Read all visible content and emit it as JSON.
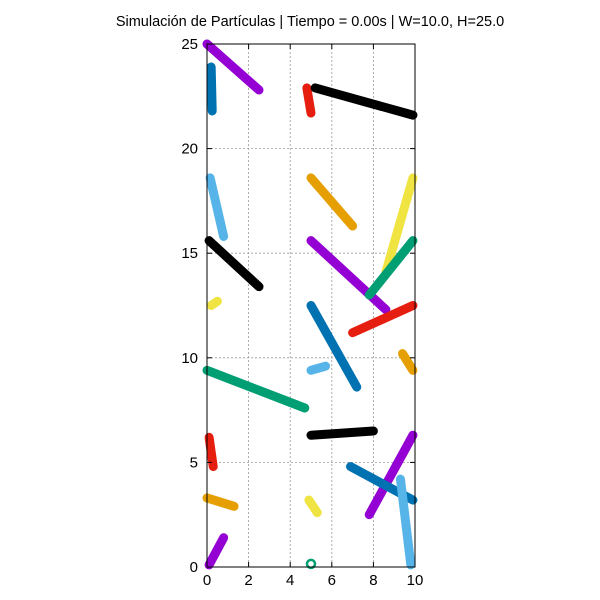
{
  "chart_data": {
    "type": "line",
    "title": "Simulación de Partículas | Tiempo = 0.00s | W=10.0, H=25.0",
    "xlabel": "",
    "ylabel": "",
    "xlim": [
      0,
      10
    ],
    "ylim": [
      0,
      25
    ],
    "xticks": [
      0,
      2,
      4,
      6,
      8,
      10
    ],
    "yticks": [
      0,
      5,
      10,
      15,
      20,
      25
    ],
    "grid": true,
    "legend": "none",
    "palette": {
      "purple": "#9400d3",
      "blue": "#0072b2",
      "lightblue": "#56b4e9",
      "black": "#000000",
      "orange": "#e69f00",
      "yellow": "#f0e442",
      "green": "#009e73",
      "red": "#e51e10"
    },
    "segments": [
      {
        "color": "purple",
        "x": [
          0.0,
          2.5
        ],
        "y": [
          25.0,
          22.8
        ]
      },
      {
        "color": "blue",
        "x": [
          0.2,
          0.25
        ],
        "y": [
          23.9,
          21.8
        ]
      },
      {
        "color": "red",
        "x": [
          4.8,
          5.0
        ],
        "y": [
          22.9,
          21.7
        ]
      },
      {
        "color": "black",
        "x": [
          5.2,
          9.9
        ],
        "y": [
          22.9,
          21.6
        ]
      },
      {
        "color": "lightblue",
        "x": [
          0.15,
          0.8
        ],
        "y": [
          18.6,
          15.8
        ]
      },
      {
        "color": "orange",
        "x": [
          5.0,
          7.0
        ],
        "y": [
          18.6,
          16.3
        ]
      },
      {
        "color": "yellow",
        "x": [
          9.9,
          8.6
        ],
        "y": [
          18.6,
          14.1
        ]
      },
      {
        "color": "black",
        "x": [
          0.1,
          2.5
        ],
        "y": [
          15.6,
          13.4
        ]
      },
      {
        "color": "purple",
        "x": [
          5.0,
          8.6
        ],
        "y": [
          15.6,
          12.3
        ]
      },
      {
        "color": "green",
        "x": [
          9.9,
          7.8
        ],
        "y": [
          15.6,
          13.0
        ]
      },
      {
        "color": "yellow",
        "x": [
          0.2,
          0.5
        ],
        "y": [
          12.5,
          12.7
        ]
      },
      {
        "color": "blue",
        "x": [
          5.0,
          7.2
        ],
        "y": [
          12.5,
          8.6
        ]
      },
      {
        "color": "red",
        "x": [
          9.9,
          7.0
        ],
        "y": [
          12.5,
          11.2
        ]
      },
      {
        "color": "orange",
        "x": [
          9.4,
          9.9
        ],
        "y": [
          10.2,
          9.4
        ]
      },
      {
        "color": "lightblue",
        "x": [
          5.0,
          5.7
        ],
        "y": [
          9.4,
          9.6
        ]
      },
      {
        "color": "green",
        "x": [
          0.0,
          4.7
        ],
        "y": [
          9.4,
          7.6
        ]
      },
      {
        "color": "black",
        "x": [
          5.0,
          8.0
        ],
        "y": [
          6.3,
          6.5
        ]
      },
      {
        "color": "purple",
        "x": [
          9.9,
          7.8
        ],
        "y": [
          6.3,
          2.5
        ]
      },
      {
        "color": "red",
        "x": [
          0.1,
          0.3
        ],
        "y": [
          6.2,
          4.8
        ]
      },
      {
        "color": "blue",
        "x": [
          6.9,
          9.9
        ],
        "y": [
          4.8,
          3.2
        ]
      },
      {
        "color": "lightblue",
        "x": [
          9.3,
          9.8
        ],
        "y": [
          4.2,
          0.1
        ]
      },
      {
        "color": "orange",
        "x": [
          0.0,
          1.3
        ],
        "y": [
          3.3,
          2.9
        ]
      },
      {
        "color": "yellow",
        "x": [
          4.9,
          5.3
        ],
        "y": [
          3.2,
          2.6
        ]
      },
      {
        "color": "purple",
        "x": [
          0.1,
          0.8
        ],
        "y": [
          0.1,
          1.4
        ]
      }
    ],
    "markers": [
      {
        "color": "green",
        "x": 5.0,
        "y": 0.15,
        "shape": "ring"
      }
    ]
  }
}
